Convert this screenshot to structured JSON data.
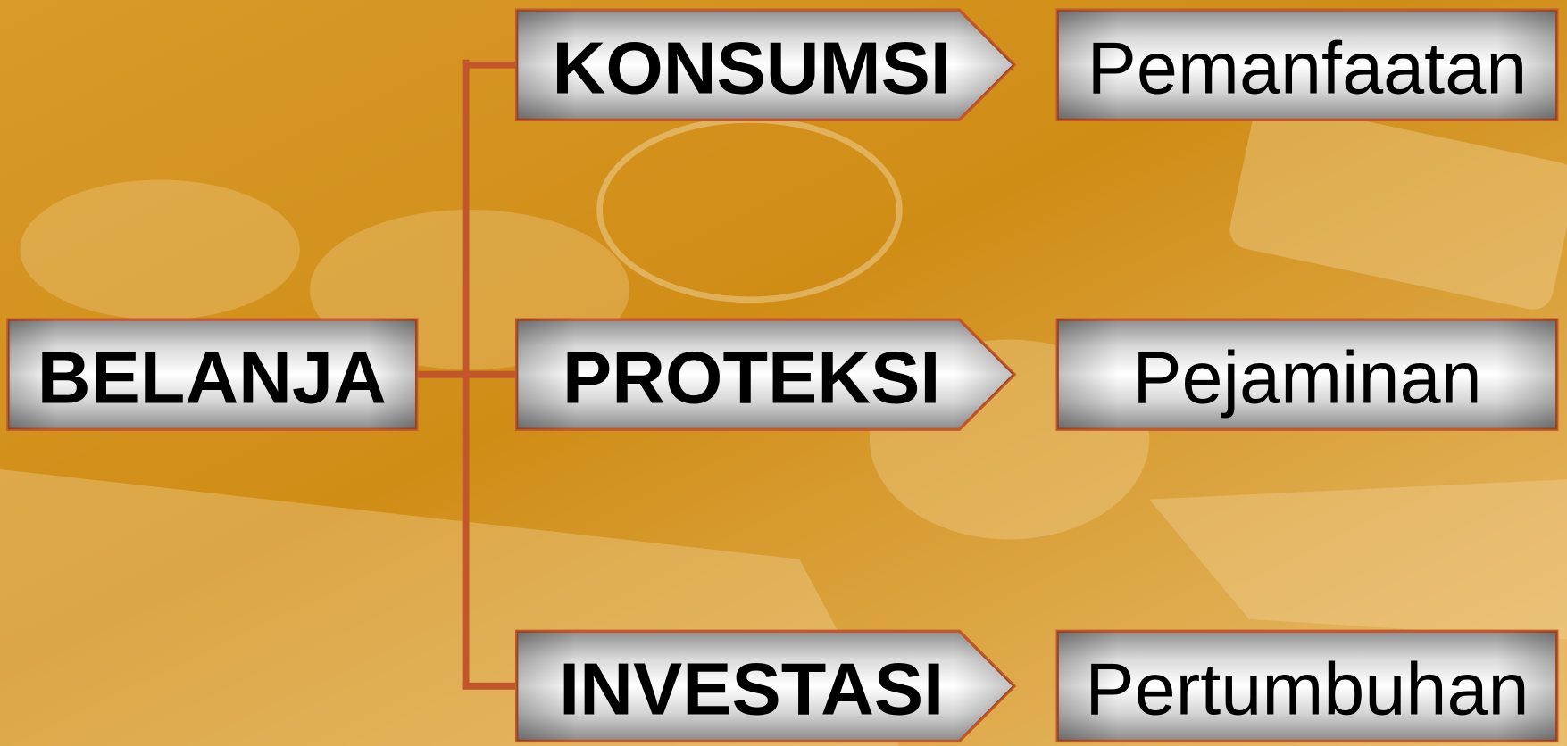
{
  "root": {
    "label": "BELANJA"
  },
  "branches": [
    {
      "label": "KONSUMSI",
      "result": "Pemanfaatan"
    },
    {
      "label": "PROTEKSI",
      "result": "Pejaminan"
    },
    {
      "label": "INVESTASI",
      "result": "Pertumbuhan"
    }
  ]
}
